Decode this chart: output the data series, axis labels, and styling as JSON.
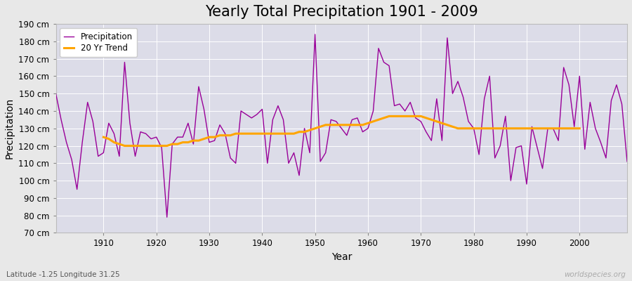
{
  "title": "Yearly Total Precipitation 1901 - 2009",
  "xlabel": "Year",
  "ylabel": "Precipitation",
  "subtitle": "Latitude -1.25 Longitude 31.25",
  "watermark": "worldspecies.org",
  "years": [
    1901,
    1902,
    1903,
    1904,
    1905,
    1906,
    1907,
    1908,
    1909,
    1910,
    1911,
    1912,
    1913,
    1914,
    1915,
    1916,
    1917,
    1918,
    1919,
    1920,
    1921,
    1922,
    1923,
    1924,
    1925,
    1926,
    1927,
    1928,
    1929,
    1930,
    1931,
    1932,
    1933,
    1934,
    1935,
    1936,
    1937,
    1938,
    1939,
    1940,
    1941,
    1942,
    1943,
    1944,
    1945,
    1946,
    1947,
    1948,
    1949,
    1950,
    1951,
    1952,
    1953,
    1954,
    1955,
    1956,
    1957,
    1958,
    1959,
    1960,
    1961,
    1962,
    1963,
    1964,
    1965,
    1966,
    1967,
    1968,
    1969,
    1970,
    1971,
    1972,
    1973,
    1974,
    1975,
    1976,
    1977,
    1978,
    1979,
    1980,
    1981,
    1982,
    1983,
    1984,
    1985,
    1986,
    1987,
    1988,
    1989,
    1990,
    1991,
    1992,
    1993,
    1994,
    1995,
    1996,
    1997,
    1998,
    1999,
    2000,
    2001,
    2002,
    2003,
    2004,
    2005,
    2006,
    2007,
    2008,
    2009
  ],
  "precip": [
    150,
    135,
    122,
    112,
    95,
    122,
    145,
    134,
    114,
    116,
    133,
    127,
    114,
    168,
    133,
    114,
    128,
    127,
    124,
    125,
    119,
    79,
    121,
    125,
    125,
    133,
    121,
    154,
    141,
    122,
    123,
    132,
    127,
    113,
    110,
    140,
    138,
    136,
    138,
    141,
    110,
    135,
    143,
    135,
    110,
    116,
    103,
    130,
    116,
    184,
    111,
    116,
    135,
    134,
    130,
    126,
    135,
    136,
    128,
    130,
    140,
    176,
    168,
    166,
    143,
    144,
    140,
    145,
    136,
    134,
    128,
    123,
    147,
    123,
    182,
    150,
    157,
    148,
    134,
    130,
    115,
    147,
    160,
    113,
    120,
    137,
    100,
    119,
    120,
    98,
    131,
    119,
    107,
    130,
    130,
    123,
    165,
    155,
    131,
    160,
    118,
    145,
    130,
    122,
    113,
    146,
    155,
    144,
    111
  ],
  "trend_years": [
    1910,
    1911,
    1912,
    1913,
    1914,
    1915,
    1916,
    1917,
    1918,
    1919,
    1920,
    1921,
    1922,
    1923,
    1924,
    1925,
    1926,
    1927,
    1928,
    1929,
    1930,
    1931,
    1932,
    1933,
    1934,
    1935,
    1936,
    1937,
    1938,
    1939,
    1940,
    1941,
    1942,
    1943,
    1944,
    1945,
    1946,
    1947,
    1948,
    1949,
    1950,
    1951,
    1952,
    1953,
    1954,
    1955,
    1956,
    1957,
    1958,
    1959,
    1960,
    1961,
    1962,
    1963,
    1964,
    1965,
    1966,
    1967,
    1968,
    1969,
    1970,
    1971,
    1972,
    1973,
    1974,
    1975,
    1976,
    1977,
    1978,
    1979,
    1980,
    1981,
    1982,
    1983,
    1984,
    1985,
    1986,
    1987,
    1988,
    1989,
    1990,
    1991,
    1992,
    1993,
    1994,
    1995,
    1996,
    1997,
    1998,
    1999,
    2000
  ],
  "trend": [
    125,
    124,
    122,
    121,
    120,
    120,
    120,
    120,
    120,
    120,
    120,
    120,
    120,
    121,
    121,
    122,
    122,
    123,
    123,
    124,
    125,
    125,
    126,
    126,
    126,
    127,
    127,
    127,
    127,
    127,
    127,
    127,
    127,
    127,
    127,
    127,
    127,
    128,
    128,
    129,
    130,
    131,
    132,
    132,
    132,
    132,
    132,
    132,
    132,
    132,
    133,
    134,
    135,
    136,
    137,
    137,
    137,
    137,
    137,
    137,
    137,
    136,
    135,
    134,
    133,
    132,
    131,
    130,
    130,
    130,
    130,
    130,
    130,
    130,
    130,
    130,
    130,
    130,
    130,
    130,
    130,
    130,
    130,
    130,
    130,
    130,
    130,
    130,
    130,
    130,
    130
  ],
  "precip_color": "#990099",
  "trend_color": "#FFA500",
  "bg_color": "#e8e8e8",
  "plot_bg_color": "#dcdce8",
  "grid_color": "#ffffff",
  "ylim": [
    70,
    190
  ],
  "yticks": [
    70,
    80,
    90,
    100,
    110,
    120,
    130,
    140,
    150,
    160,
    170,
    180,
    190
  ],
  "xticks": [
    1910,
    1920,
    1930,
    1940,
    1950,
    1960,
    1970,
    1980,
    1990,
    2000
  ],
  "title_fontsize": 15,
  "axis_label_fontsize": 10,
  "tick_fontsize": 8.5,
  "legend_fontsize": 8.5
}
